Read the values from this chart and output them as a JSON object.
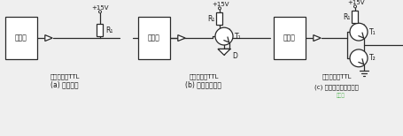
{
  "bg_color": "#efefef",
  "line_color": "#2a2a2a",
  "text_color": "#1a1a1a",
  "title_a": "(a) 直接输出",
  "title_b": "(b) 快速开通输出",
  "title_c": "(c) 快速开通和关断输出",
  "label_a": "集电极开路TTL",
  "label_b": "集电极开路TTL",
  "label_c": "集电极开路TTL",
  "mcu_label": "单片机",
  "supply_label": "+15V",
  "R1_label": "R₁",
  "T1_label": "T₁",
  "T2_label": "T₂",
  "D_label": "D",
  "watermark": "接线图"
}
